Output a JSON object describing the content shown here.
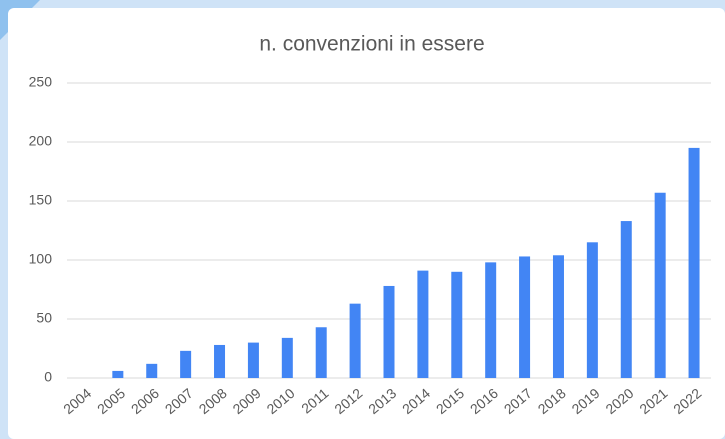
{
  "chart_data": {
    "type": "bar",
    "title": "n. convenzioni  in essere",
    "categories": [
      "2004",
      "2005",
      "2006",
      "2007",
      "2008",
      "2009",
      "2010",
      "2011",
      "2012",
      "2013",
      "2014",
      "2015",
      "2016",
      "2017",
      "2018",
      "2019",
      "2020",
      "2021",
      "2022"
    ],
    "values": [
      0,
      6,
      12,
      23,
      28,
      30,
      34,
      43,
      63,
      78,
      91,
      90,
      98,
      103,
      104,
      115,
      133,
      157,
      195
    ],
    "color": "#4285f4",
    "ylim": [
      0,
      250
    ],
    "yticks": [
      0,
      50,
      100,
      150,
      200,
      250
    ],
    "grid": true
  }
}
